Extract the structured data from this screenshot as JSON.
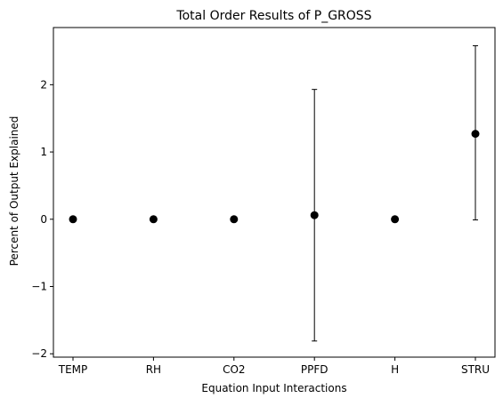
{
  "chart_data": {
    "type": "scatter",
    "title": "Total Order Results of P_GROSS",
    "xlabel": "Equation Input Interactions",
    "ylabel": "Percent of Output Explained",
    "categories": [
      "TEMP",
      "RH",
      "CO2",
      "PPFD",
      "H",
      "STRU"
    ],
    "values": [
      0.0,
      0.0,
      0.0,
      0.06,
      0.0,
      1.27
    ],
    "error_low": [
      0.0,
      0.0,
      0.0,
      -1.81,
      0.0,
      -0.01
    ],
    "error_high": [
      0.0,
      0.0,
      0.0,
      1.93,
      0.0,
      2.58
    ],
    "ylim": [
      -2.05,
      2.85
    ],
    "yticks": [
      -2,
      -1,
      0,
      1,
      2
    ],
    "ytick_labels": [
      "−2",
      "−1",
      "0",
      "1",
      "2"
    ],
    "grid": false,
    "legend": "none",
    "marker_color": "#000000"
  }
}
